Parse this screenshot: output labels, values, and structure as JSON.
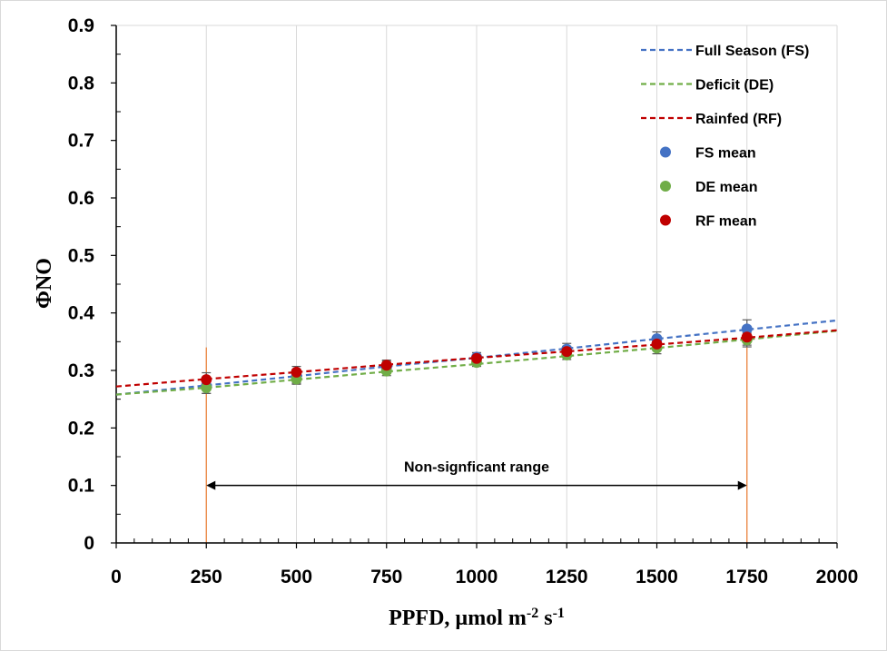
{
  "chart_data": {
    "type": "line",
    "xlabel": "PPFD, µmol m",
    "xlabel_sup1": "-2",
    "xlabel_mid": " s",
    "xlabel_sup2": "-1",
    "ylabel": "ΦNO",
    "xlim": [
      0,
      2000
    ],
    "ylim": [
      0,
      0.9
    ],
    "xticks": [
      0,
      250,
      500,
      750,
      1000,
      1250,
      1500,
      1750,
      2000
    ],
    "xtick_labels": [
      "0",
      "250",
      "500",
      "750",
      "1000",
      "1250",
      "1500",
      "1750",
      "2000"
    ],
    "yticks": [
      0,
      0.1,
      0.2,
      0.3,
      0.4,
      0.5,
      0.6,
      0.7,
      0.8,
      0.9
    ],
    "ytick_labels": [
      "0",
      "0.1",
      "0.2",
      "0.3",
      "0.4",
      "0.5",
      "0.6",
      "0.7",
      "0.8",
      "0.9"
    ],
    "grid": "vertical",
    "legend_position": "top-right",
    "lines": [
      {
        "name": "Full Season (FS)",
        "color": "#4472c4",
        "style": "dashed",
        "x": [
          0,
          250,
          500,
          750,
          1000,
          1250,
          1500,
          1750,
          2000
        ],
        "y": [
          0.258,
          0.274,
          0.29,
          0.307,
          0.322,
          0.338,
          0.355,
          0.371,
          0.387
        ]
      },
      {
        "name": "Deficit (DE)",
        "color": "#70ad47",
        "style": "dashed",
        "x": [
          0,
          250,
          500,
          750,
          1000,
          1250,
          1500,
          1750,
          2000
        ],
        "y": [
          0.258,
          0.27,
          0.284,
          0.298,
          0.311,
          0.325,
          0.339,
          0.354,
          0.369
        ]
      },
      {
        "name": "Rainfed (RF)",
        "color": "#c00000",
        "style": "dashed",
        "x": [
          0,
          250,
          500,
          750,
          1000,
          1250,
          1500,
          1750,
          2000
        ],
        "y": [
          0.272,
          0.285,
          0.297,
          0.31,
          0.322,
          0.333,
          0.345,
          0.357,
          0.37
        ]
      }
    ],
    "points": [
      {
        "name": "FS mean",
        "color": "#4472c4",
        "x": [
          250,
          500,
          750,
          1000,
          1250,
          1500,
          1750
        ],
        "y": [
          0.273,
          0.29,
          0.306,
          0.323,
          0.337,
          0.355,
          0.372
        ],
        "err": [
          0.013,
          0.012,
          0.01,
          0.008,
          0.01,
          0.012,
          0.016
        ]
      },
      {
        "name": "DE mean",
        "color": "#70ad47",
        "x": [
          250,
          500,
          750,
          1000,
          1250,
          1500,
          1750
        ],
        "y": [
          0.27,
          0.285,
          0.299,
          0.314,
          0.327,
          0.339,
          0.353
        ],
        "err": [
          0.01,
          0.009,
          0.008,
          0.007,
          0.008,
          0.01,
          0.012
        ]
      },
      {
        "name": "RF mean",
        "color": "#c00000",
        "x": [
          250,
          500,
          750,
          1000,
          1250,
          1500,
          1750
        ],
        "y": [
          0.284,
          0.297,
          0.309,
          0.321,
          0.333,
          0.346,
          0.358
        ],
        "err": [
          0.012,
          0.01,
          0.009,
          0.007,
          0.009,
          0.011,
          0.014
        ]
      }
    ],
    "vlines": {
      "x": [
        250,
        1750
      ],
      "color": "#ed7d31"
    },
    "annotation": {
      "text": "Non-signficant range",
      "x_from": 250,
      "x_to": 1750,
      "y": 0.1
    }
  }
}
